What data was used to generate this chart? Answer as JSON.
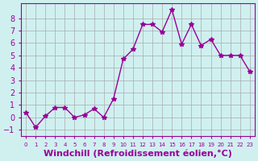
{
  "x": [
    0,
    1,
    2,
    3,
    4,
    5,
    6,
    7,
    8,
    9,
    10,
    11,
    12,
    13,
    14,
    15,
    16,
    17,
    18,
    19,
    20,
    21,
    22,
    23
  ],
  "y": [
    0.4,
    -0.8,
    0.1,
    0.8,
    0.8,
    0.0,
    0.2,
    0.7,
    0.0,
    1.5,
    4.7,
    5.5,
    7.5,
    7.5,
    6.9,
    8.7,
    5.9,
    7.5,
    5.8,
    6.3,
    5.0,
    5.0,
    5.0,
    3.7
  ],
  "line_color": "#990099",
  "marker": "*",
  "marker_size": 4,
  "xlabel": "Windchill (Refroidissement éolien,°C)",
  "xlabel_fontsize": 8,
  "ylabel_ticks": [
    -1,
    0,
    1,
    2,
    3,
    4,
    5,
    6,
    7,
    8
  ],
  "xtick_labels": [
    "0",
    "1",
    "2",
    "3",
    "4",
    "5",
    "6",
    "7",
    "8",
    "9",
    "10",
    "11",
    "12",
    "13",
    "14",
    "15",
    "16",
    "17",
    "18",
    "19",
    "20",
    "21",
    "22",
    "23"
  ],
  "ylim": [
    -1.5,
    9.2
  ],
  "xlim": [
    -0.5,
    23.5
  ],
  "bg_color": "#d0f0f0",
  "grid_color": "#aaaaaa",
  "tick_color": "#990099",
  "label_color": "#990099"
}
